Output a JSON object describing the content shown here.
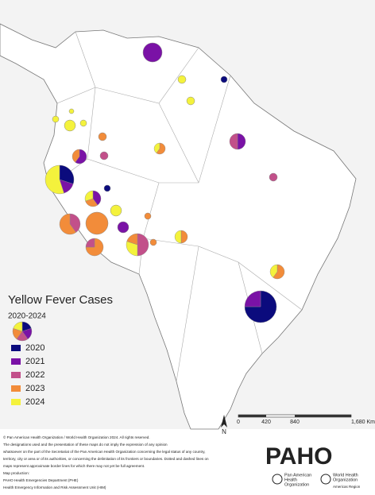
{
  "map": {
    "title": "Yellow Fever Cases",
    "subtitle": "2020-2024",
    "legend": [
      {
        "label": "2020",
        "color": "#0b0b7d"
      },
      {
        "label": "2021",
        "color": "#7a12a6"
      },
      {
        "label": "2022",
        "color": "#c2508a"
      },
      {
        "label": "2023",
        "color": "#f28c3a"
      },
      {
        "label": "2024",
        "color": "#f4f23c"
      }
    ],
    "north_arrow": "N",
    "scale_bar": {
      "labels": [
        "0",
        "420",
        "840",
        "1,680 Km"
      ]
    },
    "disclaimer": [
      "© Pan American Health Organization / World Health Organization 2024. All rights reserved.",
      "The designations used and the presentation of these maps do not imply the expression of any opinion",
      "whatsoever on the part of the Secretariat of the Pan American Health Organization concerning the legal status of any country,",
      "territory, city or area or of its authorities, or concerning the delimitation of its frontiers or boundaries. Dotted and dashed lines on",
      "maps represent approximate border lines for which there may not yet be full agreement.",
      "Map production:",
      "PAHO Health Emergencies Department (PHE)",
      "Health Emergency Information and Risk Assessment Unit (HIM)"
    ],
    "logos": {
      "paho": "PAHO",
      "paho_name": [
        "Pan American",
        "Health",
        "Organization"
      ],
      "who_name": [
        "World Health",
        "Organization"
      ],
      "who_region": "Americas Region"
    }
  }
}
